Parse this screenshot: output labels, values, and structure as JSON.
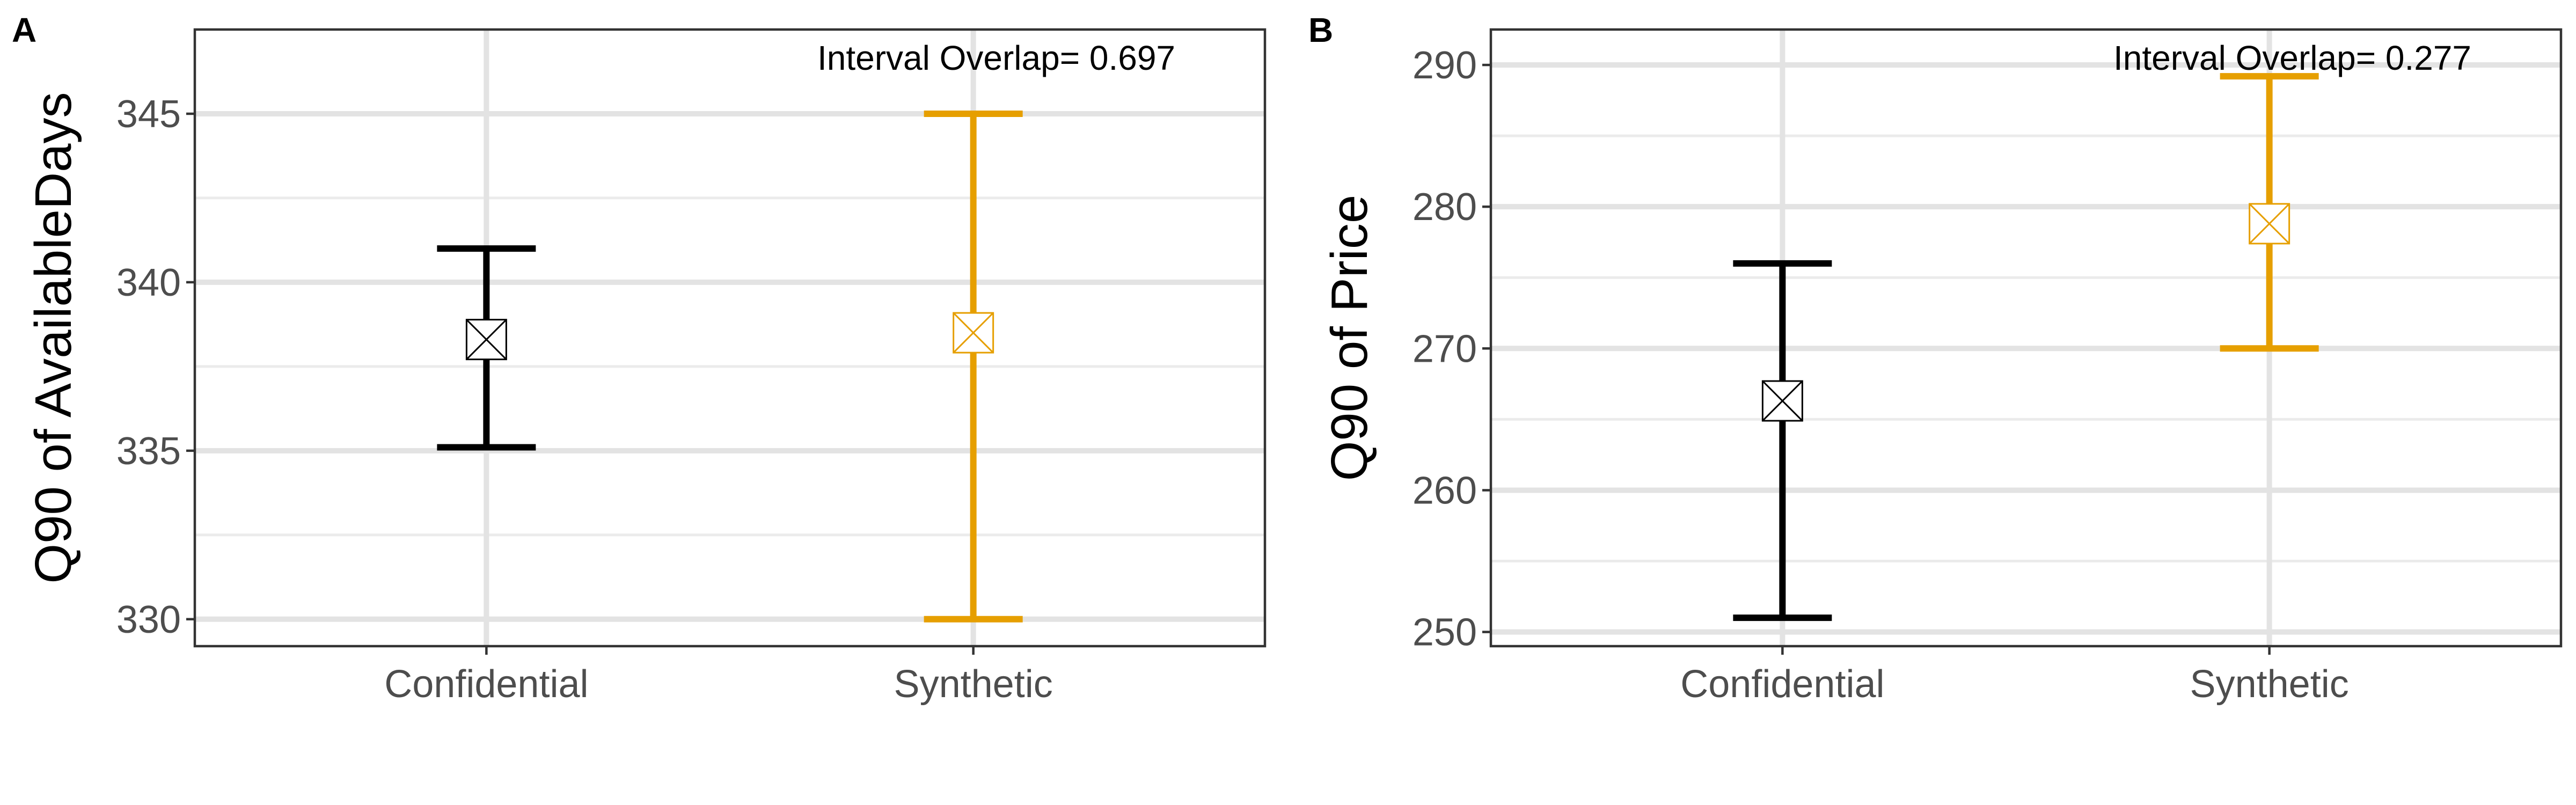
{
  "chart_data": [
    {
      "type": "errorbar",
      "panel_tag": "A",
      "ylabel": "Q90 of AvailableDays",
      "xlabel": "",
      "categories": [
        "Confidential",
        "Synthetic"
      ],
      "ylim": [
        329.2,
        347.5
      ],
      "yticks": [
        330,
        335,
        340,
        345
      ],
      "ytick_labels": [
        "330",
        "335",
        "340",
        "345"
      ],
      "minor_yticks": [
        332.5,
        337.5,
        342.5
      ],
      "annotation": "Interval Overlap= 0.697",
      "annotation_position": "top-right",
      "series": [
        {
          "name": "Confidential",
          "estimate": 338.3,
          "lower": 335.1,
          "upper": 341.0,
          "color": "#000000"
        },
        {
          "name": "Synthetic",
          "estimate": 338.5,
          "lower": 330.0,
          "upper": 345.0,
          "color": "#E69F00"
        }
      ],
      "grid": true
    },
    {
      "type": "errorbar",
      "panel_tag": "B",
      "ylabel": "Q90 of Price",
      "xlabel": "",
      "categories": [
        "Confidential",
        "Synthetic"
      ],
      "ylim": [
        249.0,
        292.5
      ],
      "yticks": [
        250,
        260,
        270,
        280,
        290
      ],
      "ytick_labels": [
        "250",
        "260",
        "270",
        "280",
        "290"
      ],
      "minor_yticks": [
        255,
        265,
        275,
        285
      ],
      "annotation": "Interval Overlap= 0.277",
      "annotation_position": "top-right",
      "series": [
        {
          "name": "Confidential",
          "estimate": 266.3,
          "lower": 251.0,
          "upper": 276.0,
          "color": "#000000"
        },
        {
          "name": "Synthetic",
          "estimate": 278.8,
          "lower": 270.0,
          "upper": 289.2,
          "color": "#E69F00"
        }
      ],
      "grid": true
    }
  ]
}
